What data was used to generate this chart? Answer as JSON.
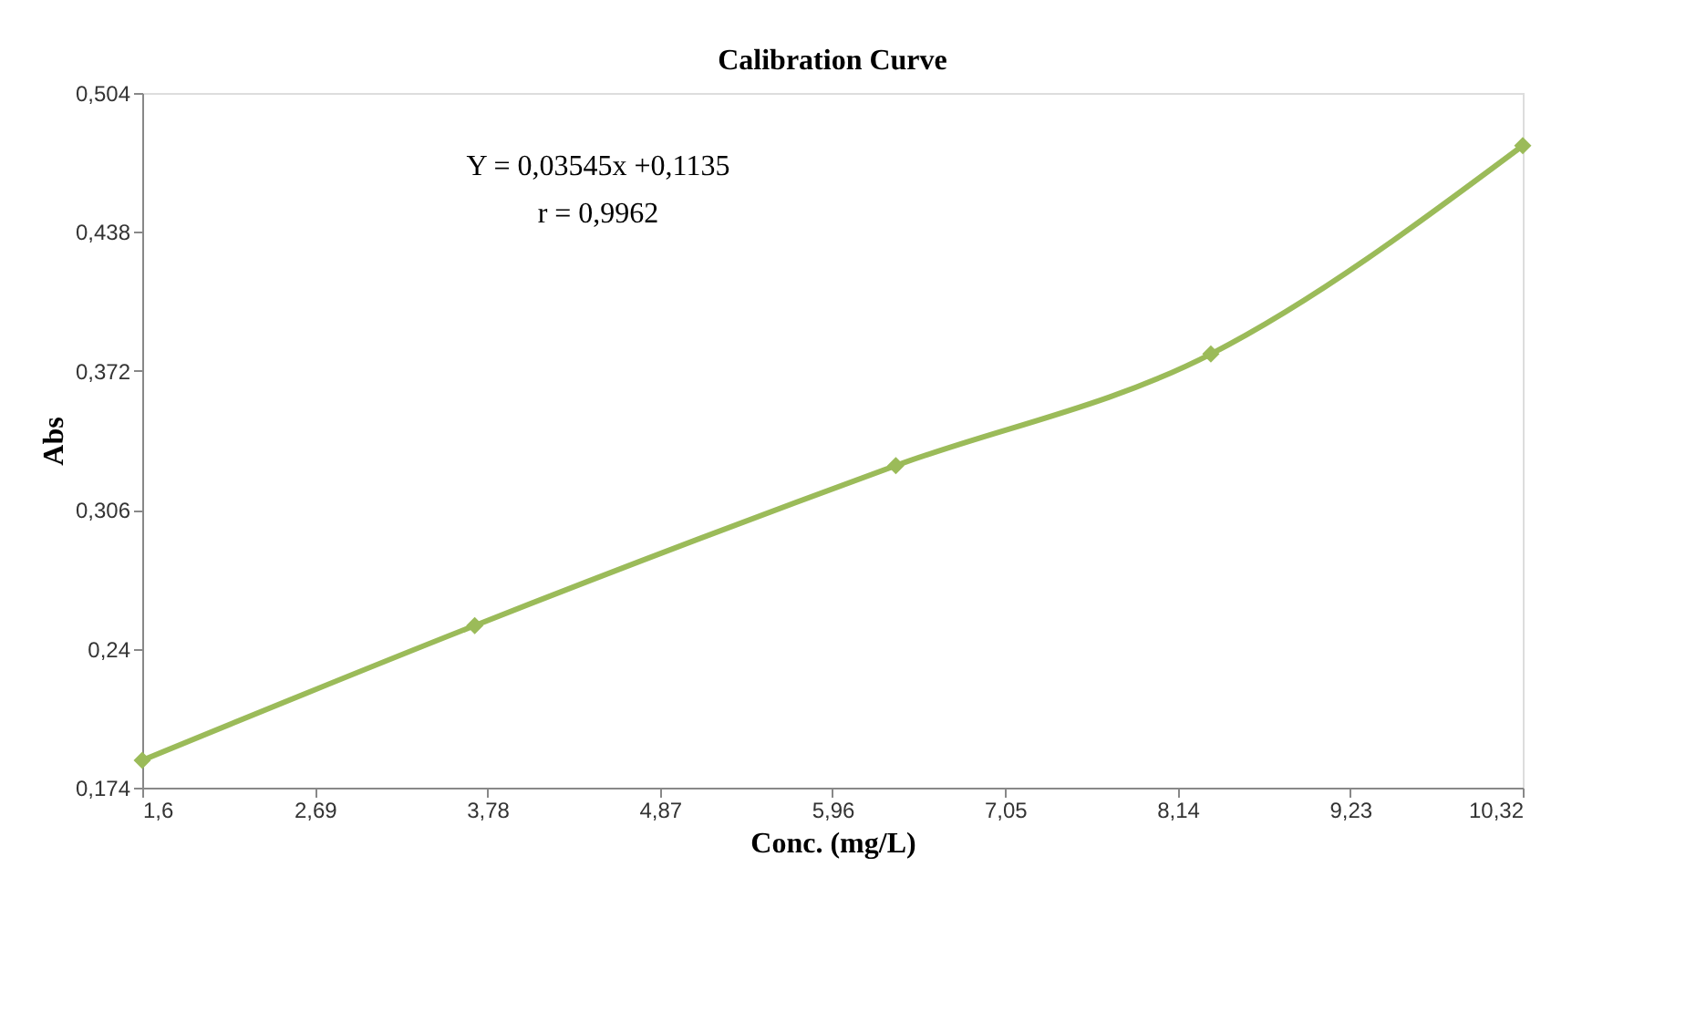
{
  "chart_data": {
    "type": "line",
    "title": "Calibration Curve",
    "xlabel": "Conc. (mg/L)",
    "ylabel": "Abs",
    "x": [
      1.6,
      3.7,
      6.36,
      8.35,
      10.32
    ],
    "series": [
      {
        "color": "#9bbb59",
        "values": [
          0.187,
          0.251,
          0.327,
          0.38,
          0.479
        ]
      }
    ],
    "xlim": [
      1.6,
      10.32
    ],
    "xticks": [
      {
        "value": 1.6,
        "label": "1,6"
      },
      {
        "value": 2.69,
        "label": "2,69"
      },
      {
        "value": 3.78,
        "label": "3,78"
      },
      {
        "value": 4.87,
        "label": "4,87"
      },
      {
        "value": 5.96,
        "label": "5,96"
      },
      {
        "value": 7.05,
        "label": "7,05"
      },
      {
        "value": 8.14,
        "label": "8,14"
      },
      {
        "value": 9.23,
        "label": "9,23"
      },
      {
        "value": 10.32,
        "label": "10,32"
      }
    ],
    "ylim": [
      0.174,
      0.504
    ],
    "yticks": [
      {
        "value": 0.174,
        "label": "0,174"
      },
      {
        "value": 0.24,
        "label": "0,24"
      },
      {
        "value": 0.306,
        "label": "0,306"
      },
      {
        "value": 0.372,
        "label": "0,372"
      },
      {
        "value": 0.438,
        "label": "0,438"
      },
      {
        "value": 0.504,
        "label": "0,504"
      }
    ],
    "annotations": [
      "Y = 0,03545x +0,1135",
      "r = 0,9962"
    ],
    "marker": "diamond",
    "line_style": "solid",
    "grid": false
  }
}
